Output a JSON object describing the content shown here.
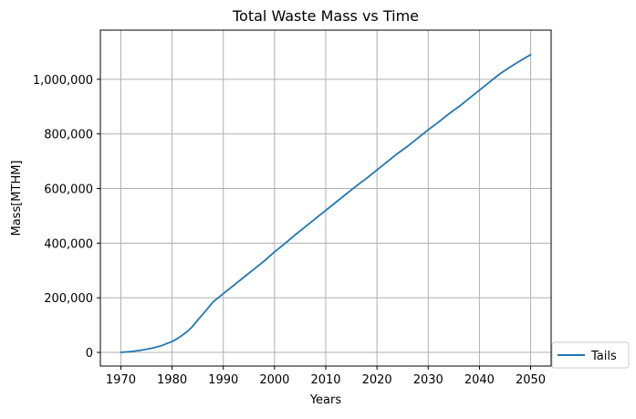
{
  "chart_data": {
    "type": "line",
    "title": "Total Waste Mass vs Time",
    "xlabel": "Years",
    "ylabel": "Mass[MTHM]",
    "xlim": [
      1966,
      2054
    ],
    "ylim": [
      -50000,
      1180000
    ],
    "xticks": [
      1970,
      1980,
      1990,
      2000,
      2010,
      2020,
      2030,
      2040,
      2050
    ],
    "xtick_labels": [
      "1970",
      "1980",
      "1990",
      "2000",
      "2010",
      "2020",
      "2030",
      "2040",
      "2050"
    ],
    "yticks": [
      0,
      200000,
      400000,
      600000,
      800000,
      1000000
    ],
    "ytick_labels": [
      "0",
      "200,000",
      "400,000",
      "600,000",
      "800,000",
      "1,000,000"
    ],
    "grid": true,
    "legend_position": "outside-bottom-right",
    "series": [
      {
        "name": "Tails",
        "color": "#1f77b4",
        "x": [
          1970,
          1972,
          1974,
          1976,
          1978,
          1980,
          1981,
          1982,
          1983,
          1984,
          1985,
          1986,
          1987,
          1988,
          1989,
          1990,
          1992,
          1994,
          1996,
          1998,
          2000,
          2002,
          2004,
          2006,
          2008,
          2010,
          2012,
          2014,
          2016,
          2018,
          2020,
          2022,
          2024,
          2026,
          2028,
          2030,
          2032,
          2034,
          2036,
          2038,
          2040,
          2042,
          2044,
          2046,
          2048,
          2050
        ],
        "y": [
          0,
          3000,
          8000,
          15000,
          25000,
          40000,
          50000,
          63000,
          77000,
          95000,
          118000,
          140000,
          162000,
          185000,
          200000,
          215000,
          245000,
          275000,
          305000,
          335000,
          368000,
          398000,
          430000,
          460000,
          490000,
          520000,
          550000,
          580000,
          610000,
          638000,
          668000,
          698000,
          728000,
          755000,
          785000,
          815000,
          843000,
          873000,
          900000,
          930000,
          960000,
          990000,
          1020000,
          1045000,
          1068000,
          1090000
        ]
      }
    ]
  }
}
